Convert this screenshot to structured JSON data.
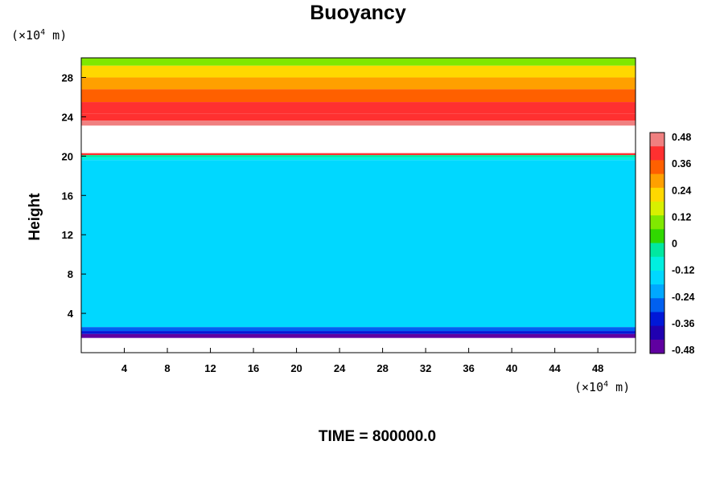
{
  "chart_data": {
    "type": "heatmap",
    "title": "Buoyancy",
    "ylabel": "Height",
    "xlabel": "",
    "x_unit_prefix": "(×10",
    "x_unit_exp": "4",
    "x_unit_suffix": " m)",
    "y_unit_prefix": "(×10",
    "y_unit_exp": "4",
    "y_unit_suffix": " m)",
    "xlim": [
      0,
      51.5
    ],
    "ylim": [
      0,
      30
    ],
    "x_ticks": [
      "4",
      "8",
      "12",
      "16",
      "20",
      "24",
      "28",
      "32",
      "36",
      "40",
      "44",
      "48"
    ],
    "y_ticks": [
      "4",
      "8",
      "12",
      "16",
      "20",
      "24",
      "28"
    ],
    "colorbar": {
      "min": -0.48,
      "max": 0.48,
      "labels": [
        "0.48",
        "0.36",
        "0.24",
        "0.12",
        "0",
        "-0.12",
        "-0.24",
        "-0.36",
        "-0.48"
      ],
      "colors": [
        "#f08080",
        "#ff3030",
        "#ff6000",
        "#ffa000",
        "#ffd800",
        "#d8f000",
        "#80e800",
        "#30d800",
        "#00e8a0",
        "#00f0e0",
        "#00d8ff",
        "#00a8ff",
        "#0060f0",
        "#0018d8",
        "#2000b0",
        "#6000a0"
      ]
    },
    "layers": [
      {
        "from": 29.2,
        "to": 30,
        "value": 0.12
      },
      {
        "from": 28,
        "to": 29.2,
        "value": 0.2
      },
      {
        "from": 26.8,
        "to": 28,
        "value": 0.26
      },
      {
        "from": 25.5,
        "to": 26.8,
        "value": 0.32
      },
      {
        "from": 24.3,
        "to": 25.5,
        "value": 0.37
      },
      {
        "from": 23.6,
        "to": 24.3,
        "value": 0.41
      },
      {
        "from": 23.1,
        "to": 23.6,
        "value": 0.47
      },
      {
        "from": 20.3,
        "to": 23.1,
        "value": null
      },
      {
        "from": 20.1,
        "to": 20.3,
        "value": 0.38
      },
      {
        "from": 19.9,
        "to": 20.1,
        "value": 0.0
      },
      {
        "from": 19.6,
        "to": 19.9,
        "value": -0.08
      },
      {
        "from": 2.6,
        "to": 19.6,
        "value": -0.16
      },
      {
        "from": 2.2,
        "to": 2.6,
        "value": -0.24
      },
      {
        "from": 1.9,
        "to": 2.2,
        "value": -0.34
      },
      {
        "from": 1.5,
        "to": 1.9,
        "value": -0.44
      }
    ],
    "grid": false
  },
  "footer": {
    "time_text": "TIME = 800000.0"
  }
}
